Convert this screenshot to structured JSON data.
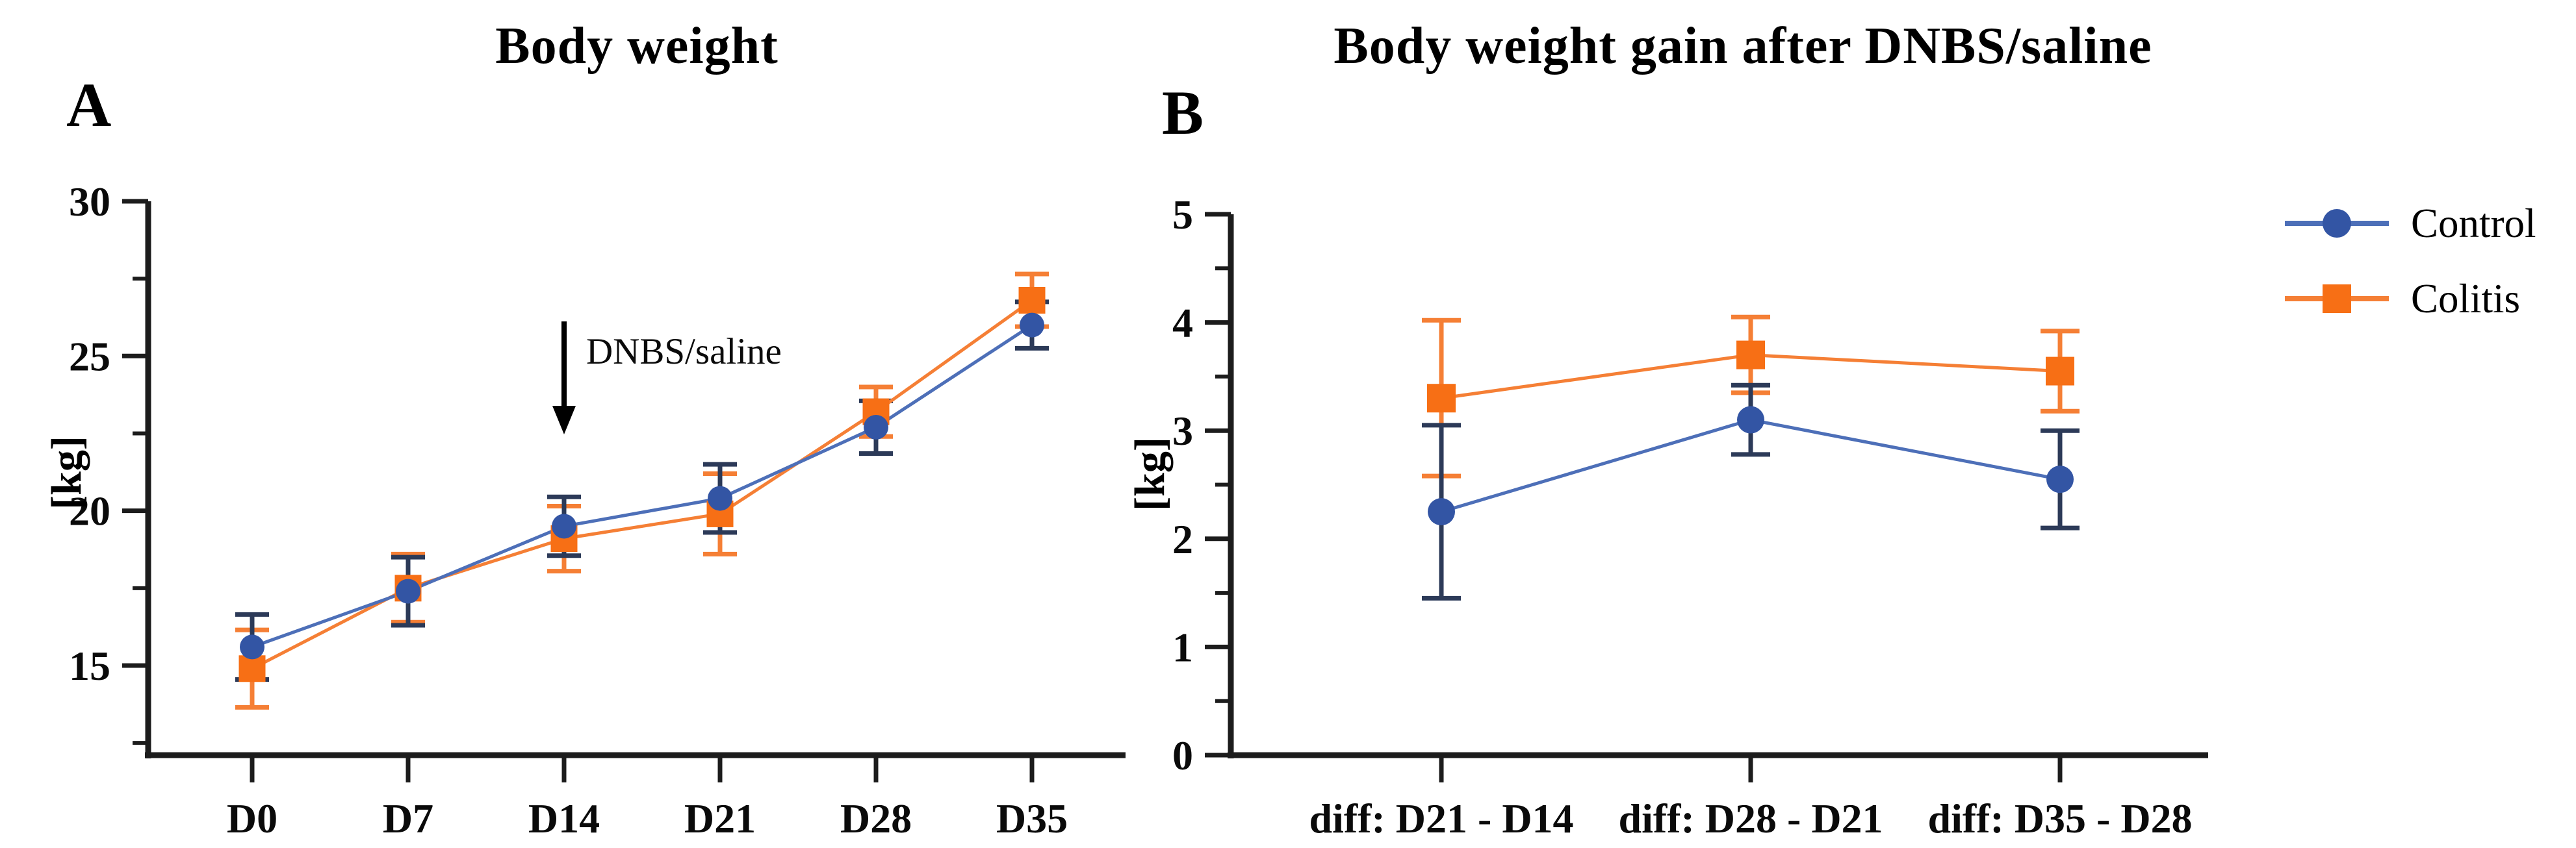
{
  "figure": {
    "panels": [
      {
        "letter": "A"
      },
      {
        "letter": "B"
      }
    ],
    "legend": [
      {
        "label": "Control",
        "marker": "circle"
      },
      {
        "label": "Colitis",
        "marker": "square"
      }
    ]
  },
  "colors": {
    "control_marker": "#3355a4",
    "control_line": "#4d6fb8",
    "control_error": "#2c3a58",
    "colitis_marker": "#f76f15",
    "colitis_line": "#f57f35",
    "colitis_error": "#f57f35",
    "axis": "#1c1c1c",
    "text": "#0a0a0a"
  },
  "chart_data": [
    {
      "type": "line",
      "title": "Body weight",
      "ylabel": "[kg]",
      "xlabel": "",
      "categories": [
        "D0",
        "D7",
        "D14",
        "D21",
        "D28",
        "D35"
      ],
      "yticks": [
        15,
        20,
        25,
        30
      ],
      "yminor": [
        12.5,
        17.5,
        22.5,
        27.5
      ],
      "ylim": [
        12.1,
        30
      ],
      "grid": false,
      "legend_position": "right-outside",
      "annotation": {
        "text": "DNBS/saline",
        "category_index": 2
      },
      "series": [
        {
          "name": "Control",
          "marker": "circle",
          "values": [
            15.6,
            17.4,
            19.5,
            20.4,
            22.7,
            26.0
          ],
          "errors": [
            1.05,
            1.1,
            0.95,
            1.1,
            0.85,
            0.75
          ]
        },
        {
          "name": "Colitis",
          "marker": "square",
          "values": [
            14.9,
            17.5,
            19.1,
            19.9,
            23.2,
            26.8
          ],
          "errors": [
            1.25,
            1.1,
            1.05,
            1.3,
            0.8,
            0.85
          ]
        }
      ]
    },
    {
      "type": "line",
      "title": "Body weight gain after DNBS/saline",
      "ylabel": "[kg]",
      "xlabel": "",
      "categories": [
        "diff: D21 - D14",
        "diff: D28 - D21",
        "diff: D35 - D28"
      ],
      "yticks": [
        0,
        1,
        2,
        3,
        4,
        5
      ],
      "yminor": [
        0.5,
        1.5,
        2.5,
        3.5,
        4.5
      ],
      "ylim": [
        0,
        5
      ],
      "grid": false,
      "legend_position": "right-outside",
      "series": [
        {
          "name": "Control",
          "marker": "circle",
          "values": [
            2.25,
            3.1,
            2.55
          ],
          "errors": [
            0.8,
            0.32,
            0.45
          ]
        },
        {
          "name": "Colitis",
          "marker": "square",
          "values": [
            3.3,
            3.7,
            3.55
          ],
          "errors": [
            0.72,
            0.35,
            0.37
          ]
        }
      ]
    }
  ]
}
